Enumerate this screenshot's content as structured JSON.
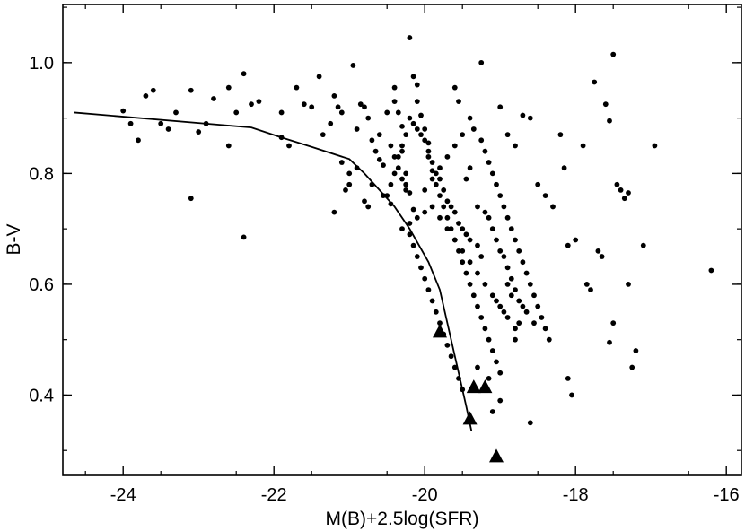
{
  "chart_data": {
    "type": "scatter",
    "title": "",
    "xlabel": "M(B)+2.5log(SFR)",
    "ylabel": "B-V",
    "xlim": [
      -24.8,
      -15.8
    ],
    "ylim": [
      0.255,
      1.105
    ],
    "x_ticks": [
      -24,
      -22,
      -20,
      -18,
      -16
    ],
    "x_tick_labels": [
      "-24",
      "-22",
      "-20",
      "-18",
      "-16"
    ],
    "y_ticks": [
      0.4,
      0.6,
      0.8,
      1.0
    ],
    "y_tick_labels": [
      "0.4",
      "0.6",
      "0.8",
      "1.0"
    ],
    "grid": false,
    "legend": "none",
    "series": [
      {
        "marker": "circle",
        "points": [
          [
            -24.0,
            0.913
          ],
          [
            -23.9,
            0.89
          ],
          [
            -23.8,
            0.86
          ],
          [
            -23.7,
            0.94
          ],
          [
            -23.6,
            0.95
          ],
          [
            -23.5,
            0.89
          ],
          [
            -23.4,
            0.88
          ],
          [
            -23.3,
            0.91
          ],
          [
            -23.1,
            0.95
          ],
          [
            -23.1,
            0.755
          ],
          [
            -23.0,
            0.875
          ],
          [
            -22.9,
            0.89
          ],
          [
            -22.8,
            0.935
          ],
          [
            -22.6,
            0.85
          ],
          [
            -22.6,
            0.955
          ],
          [
            -22.5,
            0.91
          ],
          [
            -22.4,
            0.98
          ],
          [
            -22.4,
            0.685
          ],
          [
            -22.3,
            0.925
          ],
          [
            -22.2,
            0.93
          ],
          [
            -21.9,
            0.91
          ],
          [
            -21.9,
            0.865
          ],
          [
            -21.8,
            0.85
          ],
          [
            -21.7,
            0.955
          ],
          [
            -21.6,
            0.925
          ],
          [
            -21.5,
            0.92
          ],
          [
            -21.4,
            0.975
          ],
          [
            -21.35,
            0.87
          ],
          [
            -21.25,
            0.89
          ],
          [
            -21.2,
            0.94
          ],
          [
            -21.15,
            0.92
          ],
          [
            -21.1,
            0.91
          ],
          [
            -21.1,
            0.82
          ],
          [
            -21.0,
            0.8
          ],
          [
            -21.0,
            0.78
          ],
          [
            -20.95,
            0.995
          ],
          [
            -20.9,
            0.81
          ],
          [
            -20.85,
            0.925
          ],
          [
            -20.8,
            0.92
          ],
          [
            -20.75,
            0.9
          ],
          [
            -20.7,
            0.86
          ],
          [
            -20.65,
            0.84
          ],
          [
            -20.6,
            0.825
          ],
          [
            -20.55,
            0.815
          ],
          [
            -20.5,
            0.76
          ],
          [
            -20.45,
            0.745
          ],
          [
            -20.4,
            0.955
          ],
          [
            -20.4,
            0.93
          ],
          [
            -20.35,
            0.91
          ],
          [
            -20.3,
            0.885
          ],
          [
            -20.3,
            0.84
          ],
          [
            -20.25,
            0.8
          ],
          [
            -20.25,
            0.78
          ],
          [
            -20.2,
            0.765
          ],
          [
            -20.15,
            0.735
          ],
          [
            -20.1,
            0.96
          ],
          [
            -20.1,
            0.93
          ],
          [
            -20.05,
            0.905
          ],
          [
            -20.0,
            0.88
          ],
          [
            -19.95,
            0.855
          ],
          [
            -19.95,
            0.83
          ],
          [
            -19.9,
            0.805
          ],
          [
            -19.85,
            0.78
          ],
          [
            -19.8,
            0.76
          ],
          [
            -19.75,
            0.74
          ],
          [
            -19.7,
            0.72
          ],
          [
            -19.65,
            0.7
          ],
          [
            -19.6,
            0.68
          ],
          [
            -19.55,
            0.66
          ],
          [
            -19.5,
            0.64
          ],
          [
            -19.45,
            0.62
          ],
          [
            -19.4,
            0.6
          ],
          [
            -19.35,
            0.58
          ],
          [
            -19.3,
            0.56
          ],
          [
            -19.25,
            0.54
          ],
          [
            -19.2,
            0.52
          ],
          [
            -19.15,
            0.5
          ],
          [
            -19.1,
            0.48
          ],
          [
            -19.05,
            0.46
          ],
          [
            -19.0,
            0.44
          ],
          [
            -20.5,
            0.91
          ],
          [
            -20.45,
            0.85
          ],
          [
            -20.4,
            0.83
          ],
          [
            -20.35,
            0.81
          ],
          [
            -20.3,
            0.79
          ],
          [
            -20.25,
            0.77
          ],
          [
            -20.2,
            0.69
          ],
          [
            -20.15,
            0.67
          ],
          [
            -20.1,
            0.65
          ],
          [
            -20.05,
            0.63
          ],
          [
            -20.0,
            0.61
          ],
          [
            -19.95,
            0.59
          ],
          [
            -19.9,
            0.57
          ],
          [
            -19.85,
            0.55
          ],
          [
            -19.8,
            0.53
          ],
          [
            -19.75,
            0.51
          ],
          [
            -19.7,
            0.49
          ],
          [
            -19.65,
            0.47
          ],
          [
            -19.6,
            0.45
          ],
          [
            -19.55,
            0.43
          ],
          [
            -19.5,
            0.41
          ],
          [
            -20.2,
            1.045
          ],
          [
            -20.15,
            0.975
          ],
          [
            -19.6,
            0.955
          ],
          [
            -19.55,
            0.93
          ],
          [
            -19.4,
            0.9
          ],
          [
            -19.35,
            0.88
          ],
          [
            -19.25,
            0.86
          ],
          [
            -19.2,
            0.84
          ],
          [
            -19.15,
            0.82
          ],
          [
            -19.1,
            0.8
          ],
          [
            -19.05,
            0.78
          ],
          [
            -19.0,
            0.76
          ],
          [
            -18.95,
            0.74
          ],
          [
            -18.9,
            0.72
          ],
          [
            -18.85,
            0.7
          ],
          [
            -18.8,
            0.68
          ],
          [
            -18.75,
            0.66
          ],
          [
            -18.7,
            0.64
          ],
          [
            -18.65,
            0.62
          ],
          [
            -18.6,
            0.6
          ],
          [
            -18.55,
            0.58
          ],
          [
            -18.5,
            0.56
          ],
          [
            -18.45,
            0.54
          ],
          [
            -18.4,
            0.52
          ],
          [
            -18.35,
            0.5
          ],
          [
            -19.25,
            1.0
          ],
          [
            -19.0,
            0.92
          ],
          [
            -18.9,
            0.87
          ],
          [
            -18.8,
            0.85
          ],
          [
            -18.7,
            0.905
          ],
          [
            -18.6,
            0.9
          ],
          [
            -18.5,
            0.78
          ],
          [
            -18.4,
            0.76
          ],
          [
            -18.3,
            0.74
          ],
          [
            -18.2,
            0.87
          ],
          [
            -18.15,
            0.81
          ],
          [
            -18.1,
            0.67
          ],
          [
            -18.0,
            0.68
          ],
          [
            -17.9,
            0.85
          ],
          [
            -17.85,
            0.6
          ],
          [
            -17.8,
            0.59
          ],
          [
            -17.75,
            0.965
          ],
          [
            -17.7,
            0.66
          ],
          [
            -17.65,
            0.65
          ],
          [
            -17.6,
            0.925
          ],
          [
            -17.55,
            0.895
          ],
          [
            -17.5,
            1.015
          ],
          [
            -17.45,
            0.78
          ],
          [
            -17.4,
            0.77
          ],
          [
            -17.35,
            0.755
          ],
          [
            -17.3,
            0.765
          ],
          [
            -17.3,
            0.6
          ],
          [
            -17.25,
            0.45
          ],
          [
            -17.2,
            0.48
          ],
          [
            -17.1,
            0.67
          ],
          [
            -16.95,
            0.85
          ],
          [
            -16.2,
            0.625
          ],
          [
            -17.5,
            0.53
          ],
          [
            -17.55,
            0.495
          ],
          [
            -18.1,
            0.43
          ],
          [
            -18.05,
            0.4
          ],
          [
            -18.6,
            0.35
          ],
          [
            -19.1,
            0.37
          ],
          [
            -19.0,
            0.39
          ],
          [
            -19.15,
            0.43
          ],
          [
            -19.3,
            0.45
          ],
          [
            -18.8,
            0.5
          ],
          [
            -18.75,
            0.53
          ],
          [
            -18.95,
            0.55
          ],
          [
            -19.05,
            0.57
          ],
          [
            -18.85,
            0.58
          ],
          [
            -18.9,
            0.6
          ],
          [
            -19.25,
            0.65
          ],
          [
            -19.3,
            0.67
          ],
          [
            -19.4,
            0.68
          ],
          [
            -19.45,
            0.69
          ],
          [
            -19.5,
            0.7
          ],
          [
            -19.55,
            0.71
          ],
          [
            -19.6,
            0.73
          ],
          [
            -19.65,
            0.74
          ],
          [
            -19.7,
            0.75
          ],
          [
            -19.75,
            0.77
          ],
          [
            -19.8,
            0.79
          ],
          [
            -19.85,
            0.8
          ],
          [
            -19.9,
            0.82
          ],
          [
            -19.95,
            0.84
          ],
          [
            -20.0,
            0.86
          ],
          [
            -20.05,
            0.87
          ],
          [
            -20.1,
            0.88
          ],
          [
            -20.15,
            0.89
          ],
          [
            -20.2,
            0.9
          ],
          [
            -20.25,
            0.87
          ],
          [
            -20.3,
            0.85
          ],
          [
            -20.35,
            0.83
          ],
          [
            -20.4,
            0.8
          ],
          [
            -20.45,
            0.78
          ],
          [
            -20.55,
            0.76
          ],
          [
            -20.6,
            0.87
          ],
          [
            -20.7,
            0.78
          ],
          [
            -20.75,
            0.74
          ],
          [
            -20.8,
            0.75
          ],
          [
            -21.2,
            0.73
          ],
          [
            -21.05,
            0.77
          ],
          [
            -20.9,
            0.88
          ],
          [
            -20.3,
            0.7
          ],
          [
            -20.2,
            0.71
          ],
          [
            -20.1,
            0.72
          ],
          [
            -20.0,
            0.73
          ],
          [
            -19.9,
            0.74
          ],
          [
            -19.8,
            0.72
          ],
          [
            -19.7,
            0.7
          ],
          [
            -19.6,
            0.68
          ],
          [
            -19.5,
            0.66
          ],
          [
            -19.4,
            0.64
          ],
          [
            -19.3,
            0.62
          ],
          [
            -19.2,
            0.6
          ],
          [
            -19.1,
            0.58
          ],
          [
            -19.0,
            0.56
          ],
          [
            -18.9,
            0.54
          ],
          [
            -18.8,
            0.52
          ],
          [
            -19.5,
            0.87
          ],
          [
            -19.6,
            0.85
          ],
          [
            -19.7,
            0.83
          ],
          [
            -19.8,
            0.81
          ],
          [
            -19.9,
            0.79
          ],
          [
            -20.0,
            0.77
          ],
          [
            -19.45,
            0.79
          ],
          [
            -19.4,
            0.81
          ],
          [
            -19.3,
            0.74
          ],
          [
            -19.2,
            0.73
          ],
          [
            -19.15,
            0.72
          ],
          [
            -19.1,
            0.7
          ],
          [
            -19.05,
            0.68
          ],
          [
            -19.0,
            0.66
          ],
          [
            -18.95,
            0.65
          ],
          [
            -18.9,
            0.63
          ],
          [
            -18.85,
            0.61
          ],
          [
            -18.8,
            0.59
          ],
          [
            -18.75,
            0.57
          ],
          [
            -18.7,
            0.56
          ],
          [
            -18.65,
            0.55
          ],
          [
            -18.55,
            0.53
          ]
        ]
      },
      {
        "marker": "triangle",
        "points": [
          [
            -19.8,
            0.515
          ],
          [
            -19.35,
            0.415
          ],
          [
            -19.2,
            0.415
          ],
          [
            -19.4,
            0.358
          ],
          [
            -19.05,
            0.29
          ]
        ]
      },
      {
        "marker": "line",
        "points": [
          [
            -24.65,
            0.91
          ],
          [
            -22.3,
            0.883
          ],
          [
            -21.9,
            0.865
          ],
          [
            -21.5,
            0.848
          ],
          [
            -21.0,
            0.826
          ],
          [
            -20.8,
            0.8
          ],
          [
            -20.6,
            0.77
          ],
          [
            -20.4,
            0.74
          ],
          [
            -20.2,
            0.7
          ],
          [
            -19.95,
            0.64
          ],
          [
            -19.8,
            0.59
          ],
          [
            -19.7,
            0.53
          ],
          [
            -19.55,
            0.44
          ],
          [
            -19.45,
            0.38
          ],
          [
            -19.38,
            0.335
          ]
        ]
      }
    ]
  }
}
